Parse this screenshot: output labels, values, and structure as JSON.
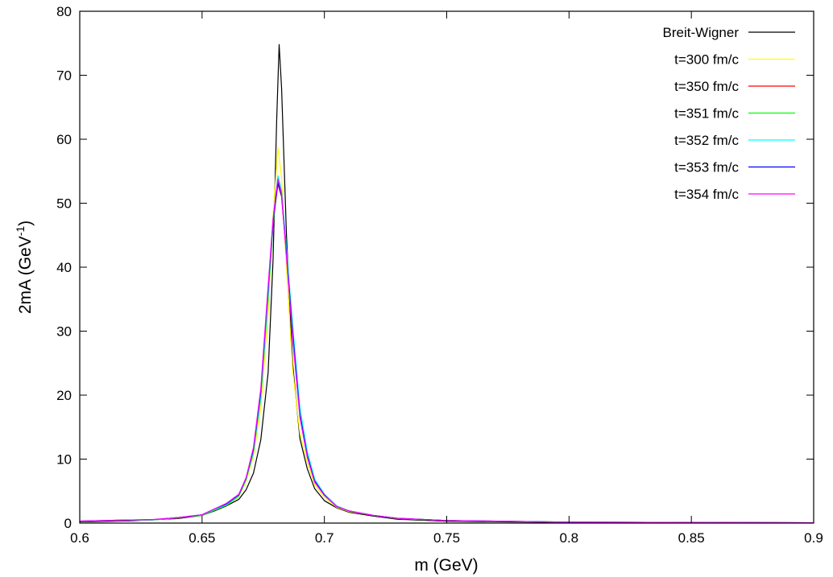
{
  "chart_data": {
    "type": "line",
    "title": "",
    "xlabel": "m (GeV)",
    "ylabel": {
      "base": "2mA (GeV",
      "sup": "-1",
      "close": ")"
    },
    "xlim": [
      0.6,
      0.9
    ],
    "ylim": [
      0,
      80
    ],
    "x_ticks": [
      0.6,
      0.65,
      0.7,
      0.75,
      0.8,
      0.85,
      0.9
    ],
    "x_tick_labels": [
      "0.6",
      "0.65",
      "0.7",
      "0.75",
      "0.8",
      "0.85",
      "0.9"
    ],
    "y_ticks": [
      0,
      10,
      20,
      30,
      40,
      50,
      60,
      70,
      80
    ],
    "y_tick_labels": [
      "0",
      "10",
      "20",
      "30",
      "40",
      "50",
      "60",
      "70",
      "80"
    ],
    "grid": false,
    "legend_position": "top-right",
    "series": [
      {
        "name": "Breit-Wigner",
        "color": "#000000",
        "points": [
          [
            0.6,
            0.2
          ],
          [
            0.62,
            0.35
          ],
          [
            0.64,
            0.7
          ],
          [
            0.65,
            1.2
          ],
          [
            0.655,
            1.9
          ],
          [
            0.66,
            2.7
          ],
          [
            0.665,
            3.7
          ],
          [
            0.668,
            5.2
          ],
          [
            0.671,
            7.8
          ],
          [
            0.674,
            13.0
          ],
          [
            0.677,
            23.5
          ],
          [
            0.679,
            41.0
          ],
          [
            0.6805,
            63.0
          ],
          [
            0.6815,
            74.8
          ],
          [
            0.6825,
            68.0
          ],
          [
            0.6845,
            45.0
          ],
          [
            0.687,
            25.0
          ],
          [
            0.69,
            13.2
          ],
          [
            0.693,
            8.5
          ],
          [
            0.696,
            5.4
          ],
          [
            0.7,
            3.5
          ],
          [
            0.705,
            2.4
          ],
          [
            0.71,
            1.7
          ],
          [
            0.72,
            1.1
          ],
          [
            0.73,
            0.6
          ],
          [
            0.75,
            0.3
          ],
          [
            0.8,
            0.1
          ],
          [
            0.9,
            0.03
          ]
        ]
      },
      {
        "name": "t=300 fm/c",
        "color": "#ffff00",
        "points": [
          [
            0.6,
            0.3
          ],
          [
            0.62,
            0.45
          ],
          [
            0.63,
            0.5
          ],
          [
            0.64,
            0.8
          ],
          [
            0.65,
            1.3
          ],
          [
            0.655,
            2.0
          ],
          [
            0.66,
            2.8
          ],
          [
            0.665,
            4.1
          ],
          [
            0.668,
            6.5
          ],
          [
            0.671,
            10.5
          ],
          [
            0.674,
            18.0
          ],
          [
            0.677,
            33.0
          ],
          [
            0.679,
            48.0
          ],
          [
            0.681,
            58.7
          ],
          [
            0.6825,
            54.0
          ],
          [
            0.6845,
            40.0
          ],
          [
            0.687,
            24.0
          ],
          [
            0.69,
            14.0
          ],
          [
            0.693,
            9.5
          ],
          [
            0.696,
            6.0
          ],
          [
            0.7,
            4.0
          ],
          [
            0.705,
            2.5
          ],
          [
            0.71,
            1.8
          ],
          [
            0.72,
            1.2
          ],
          [
            0.73,
            0.7
          ],
          [
            0.75,
            0.4
          ],
          [
            0.8,
            0.15
          ],
          [
            0.9,
            0.05
          ]
        ]
      },
      {
        "name": "t=350 fm/c",
        "color": "#ff0000",
        "points": [
          [
            0.6,
            0.3
          ],
          [
            0.615,
            0.45
          ],
          [
            0.63,
            0.5
          ],
          [
            0.64,
            0.85
          ],
          [
            0.65,
            1.3
          ],
          [
            0.655,
            2.1
          ],
          [
            0.66,
            2.9
          ],
          [
            0.665,
            4.3
          ],
          [
            0.668,
            6.9
          ],
          [
            0.671,
            11.3
          ],
          [
            0.674,
            20.0
          ],
          [
            0.677,
            36.0
          ],
          [
            0.679,
            47.0
          ],
          [
            0.681,
            53.0
          ],
          [
            0.6825,
            51.0
          ],
          [
            0.6845,
            42.0
          ],
          [
            0.687,
            30.0
          ],
          [
            0.69,
            17.0
          ],
          [
            0.693,
            10.5
          ],
          [
            0.696,
            6.5
          ],
          [
            0.7,
            4.4
          ],
          [
            0.705,
            2.6
          ],
          [
            0.71,
            1.9
          ],
          [
            0.72,
            1.2
          ],
          [
            0.73,
            0.75
          ],
          [
            0.75,
            0.4
          ],
          [
            0.8,
            0.15
          ],
          [
            0.9,
            0.05
          ]
        ]
      },
      {
        "name": "t=351 fm/c",
        "color": "#00ff00",
        "points": [
          [
            0.6,
            0.3
          ],
          [
            0.615,
            0.4
          ],
          [
            0.63,
            0.5
          ],
          [
            0.64,
            0.85
          ],
          [
            0.65,
            1.2
          ],
          [
            0.655,
            2.0
          ],
          [
            0.66,
            2.8
          ],
          [
            0.665,
            4.2
          ],
          [
            0.668,
            6.8
          ],
          [
            0.671,
            11.0
          ],
          [
            0.674,
            19.5
          ],
          [
            0.677,
            35.0
          ],
          [
            0.679,
            46.5
          ],
          [
            0.681,
            53.5
          ],
          [
            0.6825,
            51.5
          ],
          [
            0.6845,
            42.5
          ],
          [
            0.687,
            30.5
          ],
          [
            0.69,
            17.5
          ],
          [
            0.693,
            11.0
          ],
          [
            0.696,
            6.8
          ],
          [
            0.7,
            4.5
          ],
          [
            0.705,
            2.7
          ],
          [
            0.71,
            1.9
          ],
          [
            0.72,
            1.2
          ],
          [
            0.73,
            0.75
          ],
          [
            0.75,
            0.4
          ],
          [
            0.8,
            0.15
          ],
          [
            0.9,
            0.05
          ]
        ]
      },
      {
        "name": "t=352 fm/c",
        "color": "#00ffff",
        "points": [
          [
            0.6,
            0.3
          ],
          [
            0.615,
            0.45
          ],
          [
            0.63,
            0.5
          ],
          [
            0.64,
            0.85
          ],
          [
            0.65,
            1.3
          ],
          [
            0.655,
            2.1
          ],
          [
            0.66,
            2.9
          ],
          [
            0.665,
            4.3
          ],
          [
            0.668,
            6.9
          ],
          [
            0.671,
            11.2
          ],
          [
            0.674,
            19.8
          ],
          [
            0.677,
            35.5
          ],
          [
            0.679,
            47.5
          ],
          [
            0.681,
            54.3
          ],
          [
            0.6825,
            52.0
          ],
          [
            0.6845,
            43.0
          ],
          [
            0.687,
            31.0
          ],
          [
            0.69,
            18.0
          ],
          [
            0.693,
            11.2
          ],
          [
            0.696,
            6.9
          ],
          [
            0.7,
            4.5
          ],
          [
            0.705,
            2.7
          ],
          [
            0.71,
            1.9
          ],
          [
            0.72,
            1.2
          ],
          [
            0.73,
            0.75
          ],
          [
            0.75,
            0.4
          ],
          [
            0.8,
            0.15
          ],
          [
            0.9,
            0.05
          ]
        ]
      },
      {
        "name": "t=353 fm/c",
        "color": "#0000ff",
        "points": [
          [
            0.6,
            0.3
          ],
          [
            0.615,
            0.45
          ],
          [
            0.63,
            0.55
          ],
          [
            0.64,
            0.85
          ],
          [
            0.65,
            1.3
          ],
          [
            0.655,
            2.2
          ],
          [
            0.66,
            3.0
          ],
          [
            0.665,
            4.4
          ],
          [
            0.668,
            7.0
          ],
          [
            0.671,
            11.5
          ],
          [
            0.674,
            20.5
          ],
          [
            0.677,
            36.5
          ],
          [
            0.679,
            47.0
          ],
          [
            0.681,
            53.2
          ],
          [
            0.6825,
            51.2
          ],
          [
            0.6845,
            42.0
          ],
          [
            0.687,
            30.0
          ],
          [
            0.69,
            17.0
          ],
          [
            0.693,
            10.6
          ],
          [
            0.696,
            6.6
          ],
          [
            0.7,
            4.4
          ],
          [
            0.705,
            2.6
          ],
          [
            0.71,
            1.9
          ],
          [
            0.72,
            1.2
          ],
          [
            0.73,
            0.75
          ],
          [
            0.75,
            0.4
          ],
          [
            0.8,
            0.15
          ],
          [
            0.9,
            0.05
          ]
        ]
      },
      {
        "name": "t=354 fm/c",
        "color": "#ff00ff",
        "points": [
          [
            0.6,
            0.3
          ],
          [
            0.615,
            0.45
          ],
          [
            0.63,
            0.55
          ],
          [
            0.64,
            0.85
          ],
          [
            0.65,
            1.3
          ],
          [
            0.655,
            2.2
          ],
          [
            0.66,
            3.1
          ],
          [
            0.665,
            4.5
          ],
          [
            0.668,
            7.1
          ],
          [
            0.671,
            11.8
          ],
          [
            0.674,
            21.0
          ],
          [
            0.677,
            37.0
          ],
          [
            0.679,
            47.5
          ],
          [
            0.681,
            53.8
          ],
          [
            0.6825,
            51.5
          ],
          [
            0.6845,
            41.5
          ],
          [
            0.687,
            29.0
          ],
          [
            0.69,
            16.5
          ],
          [
            0.693,
            10.3
          ],
          [
            0.696,
            6.4
          ],
          [
            0.7,
            4.3
          ],
          [
            0.705,
            2.6
          ],
          [
            0.71,
            1.9
          ],
          [
            0.72,
            1.2
          ],
          [
            0.73,
            0.75
          ],
          [
            0.75,
            0.4
          ],
          [
            0.8,
            0.15
          ],
          [
            0.9,
            0.05
          ]
        ]
      }
    ]
  }
}
